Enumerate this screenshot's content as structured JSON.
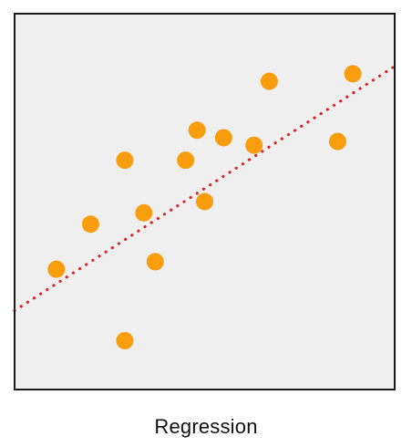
{
  "caption": "Regression",
  "colors": {
    "plot_background": "#efefef",
    "frame": "#1a1a1a",
    "point": "#f89d0e",
    "regression_line": "#d92424"
  },
  "chart_data": {
    "type": "scatter",
    "title": "",
    "xlabel": "",
    "ylabel": "",
    "xlim": [
      0,
      100
    ],
    "ylim": [
      0,
      100
    ],
    "grid": false,
    "points": [
      {
        "x": 11,
        "y": 32
      },
      {
        "x": 20,
        "y": 44
      },
      {
        "x": 29,
        "y": 13
      },
      {
        "x": 29,
        "y": 61
      },
      {
        "x": 34,
        "y": 47
      },
      {
        "x": 37,
        "y": 34
      },
      {
        "x": 45,
        "y": 61
      },
      {
        "x": 48,
        "y": 69
      },
      {
        "x": 50,
        "y": 50
      },
      {
        "x": 55,
        "y": 67
      },
      {
        "x": 63,
        "y": 65
      },
      {
        "x": 67,
        "y": 82
      },
      {
        "x": 85,
        "y": 66
      },
      {
        "x": 89,
        "y": 84
      }
    ],
    "regression_line": {
      "style": "dotted",
      "from": {
        "x": 0,
        "y": 21
      },
      "to": {
        "x": 100,
        "y": 86
      }
    }
  }
}
